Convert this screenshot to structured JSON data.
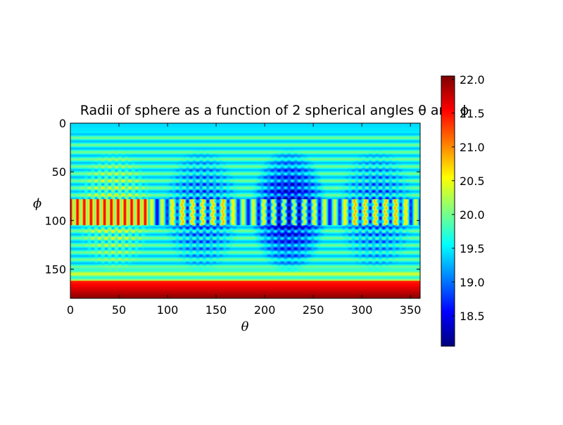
{
  "chart_data": {
    "type": "heatmap",
    "title": "Radii of sphere as a function of 2 spherical angles θ and ϕ",
    "xlabel": "θ",
    "ylabel": "ϕ",
    "xlim": [
      0,
      360
    ],
    "ylim": [
      180,
      0
    ],
    "x_ticks": [
      "0",
      "50",
      "100",
      "150",
      "200",
      "250",
      "300",
      "350"
    ],
    "y_ticks": [
      "0",
      "50",
      "100",
      "150"
    ],
    "colorbar": {
      "colormap": "jet",
      "range": [
        18.05,
        22.05
      ],
      "ticks": [
        "18.5",
        "19.0",
        "19.5",
        "20.0",
        "20.5",
        "21.0",
        "21.5",
        "22.0"
      ]
    },
    "grid": false
  }
}
